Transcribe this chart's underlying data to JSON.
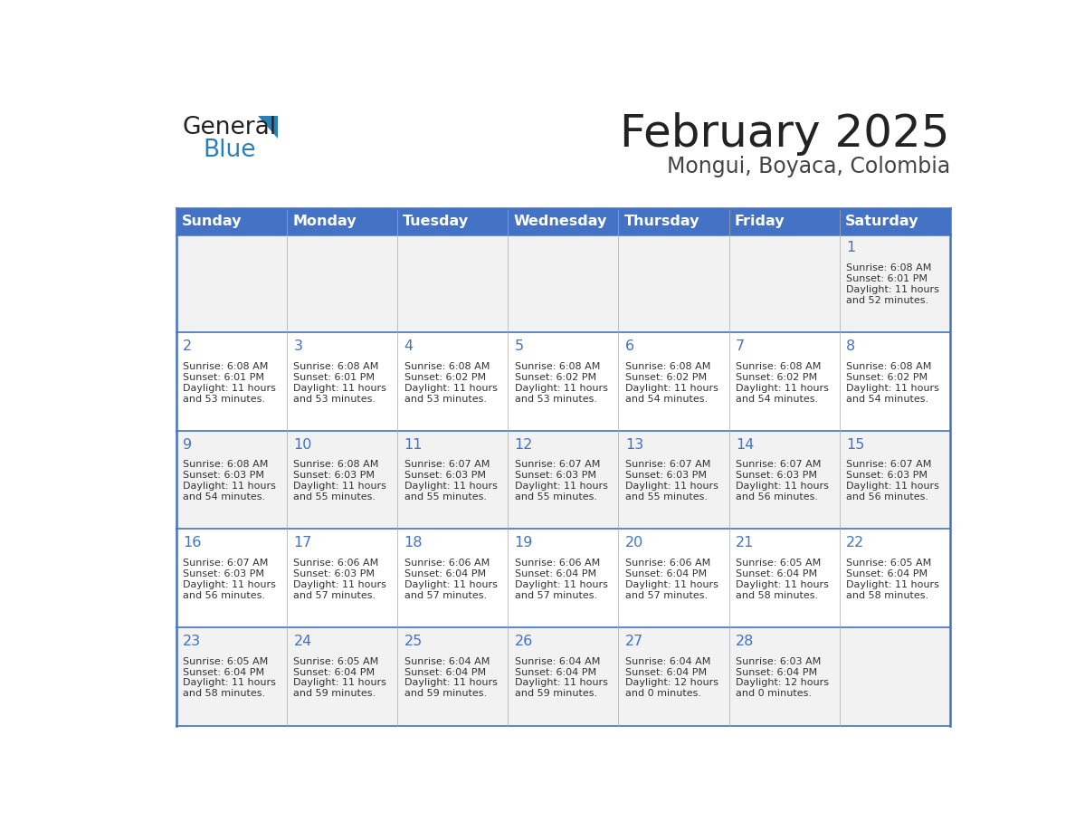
{
  "title": "February 2025",
  "subtitle": "Mongui, Boyaca, Colombia",
  "header_bg": "#4472C4",
  "header_text_color": "#FFFFFF",
  "cell_bg_odd": "#F2F2F2",
  "cell_bg_even": "#FFFFFF",
  "day_headers": [
    "Sunday",
    "Monday",
    "Tuesday",
    "Wednesday",
    "Thursday",
    "Friday",
    "Saturday"
  ],
  "title_color": "#222222",
  "subtitle_color": "#444444",
  "day_num_color": "#4472C4",
  "info_color": "#333333",
  "border_color": "#4472C4",
  "line_color": "#AAAAAA",
  "days": [
    {
      "day": 1,
      "col": 6,
      "row": 0,
      "sunrise": "6:08 AM",
      "sunset": "6:01 PM",
      "daylight": "11 hours",
      "daylight2": "and 52 minutes."
    },
    {
      "day": 2,
      "col": 0,
      "row": 1,
      "sunrise": "6:08 AM",
      "sunset": "6:01 PM",
      "daylight": "11 hours",
      "daylight2": "and 53 minutes."
    },
    {
      "day": 3,
      "col": 1,
      "row": 1,
      "sunrise": "6:08 AM",
      "sunset": "6:01 PM",
      "daylight": "11 hours",
      "daylight2": "and 53 minutes."
    },
    {
      "day": 4,
      "col": 2,
      "row": 1,
      "sunrise": "6:08 AM",
      "sunset": "6:02 PM",
      "daylight": "11 hours",
      "daylight2": "and 53 minutes."
    },
    {
      "day": 5,
      "col": 3,
      "row": 1,
      "sunrise": "6:08 AM",
      "sunset": "6:02 PM",
      "daylight": "11 hours",
      "daylight2": "and 53 minutes."
    },
    {
      "day": 6,
      "col": 4,
      "row": 1,
      "sunrise": "6:08 AM",
      "sunset": "6:02 PM",
      "daylight": "11 hours",
      "daylight2": "and 54 minutes."
    },
    {
      "day": 7,
      "col": 5,
      "row": 1,
      "sunrise": "6:08 AM",
      "sunset": "6:02 PM",
      "daylight": "11 hours",
      "daylight2": "and 54 minutes."
    },
    {
      "day": 8,
      "col": 6,
      "row": 1,
      "sunrise": "6:08 AM",
      "sunset": "6:02 PM",
      "daylight": "11 hours",
      "daylight2": "and 54 minutes."
    },
    {
      "day": 9,
      "col": 0,
      "row": 2,
      "sunrise": "6:08 AM",
      "sunset": "6:03 PM",
      "daylight": "11 hours",
      "daylight2": "and 54 minutes."
    },
    {
      "day": 10,
      "col": 1,
      "row": 2,
      "sunrise": "6:08 AM",
      "sunset": "6:03 PM",
      "daylight": "11 hours",
      "daylight2": "and 55 minutes."
    },
    {
      "day": 11,
      "col": 2,
      "row": 2,
      "sunrise": "6:07 AM",
      "sunset": "6:03 PM",
      "daylight": "11 hours",
      "daylight2": "and 55 minutes."
    },
    {
      "day": 12,
      "col": 3,
      "row": 2,
      "sunrise": "6:07 AM",
      "sunset": "6:03 PM",
      "daylight": "11 hours",
      "daylight2": "and 55 minutes."
    },
    {
      "day": 13,
      "col": 4,
      "row": 2,
      "sunrise": "6:07 AM",
      "sunset": "6:03 PM",
      "daylight": "11 hours",
      "daylight2": "and 55 minutes."
    },
    {
      "day": 14,
      "col": 5,
      "row": 2,
      "sunrise": "6:07 AM",
      "sunset": "6:03 PM",
      "daylight": "11 hours",
      "daylight2": "and 56 minutes."
    },
    {
      "day": 15,
      "col": 6,
      "row": 2,
      "sunrise": "6:07 AM",
      "sunset": "6:03 PM",
      "daylight": "11 hours",
      "daylight2": "and 56 minutes."
    },
    {
      "day": 16,
      "col": 0,
      "row": 3,
      "sunrise": "6:07 AM",
      "sunset": "6:03 PM",
      "daylight": "11 hours",
      "daylight2": "and 56 minutes."
    },
    {
      "day": 17,
      "col": 1,
      "row": 3,
      "sunrise": "6:06 AM",
      "sunset": "6:03 PM",
      "daylight": "11 hours",
      "daylight2": "and 57 minutes."
    },
    {
      "day": 18,
      "col": 2,
      "row": 3,
      "sunrise": "6:06 AM",
      "sunset": "6:04 PM",
      "daylight": "11 hours",
      "daylight2": "and 57 minutes."
    },
    {
      "day": 19,
      "col": 3,
      "row": 3,
      "sunrise": "6:06 AM",
      "sunset": "6:04 PM",
      "daylight": "11 hours",
      "daylight2": "and 57 minutes."
    },
    {
      "day": 20,
      "col": 4,
      "row": 3,
      "sunrise": "6:06 AM",
      "sunset": "6:04 PM",
      "daylight": "11 hours",
      "daylight2": "and 57 minutes."
    },
    {
      "day": 21,
      "col": 5,
      "row": 3,
      "sunrise": "6:05 AM",
      "sunset": "6:04 PM",
      "daylight": "11 hours",
      "daylight2": "and 58 minutes."
    },
    {
      "day": 22,
      "col": 6,
      "row": 3,
      "sunrise": "6:05 AM",
      "sunset": "6:04 PM",
      "daylight": "11 hours",
      "daylight2": "and 58 minutes."
    },
    {
      "day": 23,
      "col": 0,
      "row": 4,
      "sunrise": "6:05 AM",
      "sunset": "6:04 PM",
      "daylight": "11 hours",
      "daylight2": "and 58 minutes."
    },
    {
      "day": 24,
      "col": 1,
      "row": 4,
      "sunrise": "6:05 AM",
      "sunset": "6:04 PM",
      "daylight": "11 hours",
      "daylight2": "and 59 minutes."
    },
    {
      "day": 25,
      "col": 2,
      "row": 4,
      "sunrise": "6:04 AM",
      "sunset": "6:04 PM",
      "daylight": "11 hours",
      "daylight2": "and 59 minutes."
    },
    {
      "day": 26,
      "col": 3,
      "row": 4,
      "sunrise": "6:04 AM",
      "sunset": "6:04 PM",
      "daylight": "11 hours",
      "daylight2": "and 59 minutes."
    },
    {
      "day": 27,
      "col": 4,
      "row": 4,
      "sunrise": "6:04 AM",
      "sunset": "6:04 PM",
      "daylight": "12 hours",
      "daylight2": "and 0 minutes."
    },
    {
      "day": 28,
      "col": 5,
      "row": 4,
      "sunrise": "6:03 AM",
      "sunset": "6:04 PM",
      "daylight": "12 hours",
      "daylight2": "and 0 minutes."
    }
  ],
  "logo_text1": "General",
  "logo_text2": "Blue",
  "logo_color1": "#222222",
  "logo_color2": "#2980B9",
  "fig_width": 11.88,
  "fig_height": 9.18,
  "dpi": 100
}
